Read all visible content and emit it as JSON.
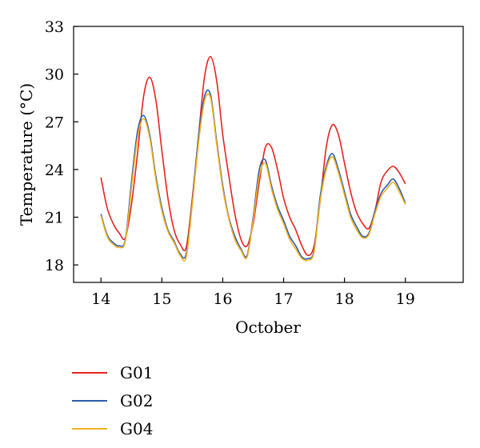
{
  "chart_data": {
    "type": "line",
    "title": "",
    "xlabel": "October",
    "ylabel": "Temperature (°C)",
    "xlim": [
      13.55,
      19.95
    ],
    "ylim": [
      16.9,
      33
    ],
    "xticks": [
      14,
      15,
      16,
      17,
      18,
      19
    ],
    "yticks": [
      18,
      21,
      24,
      27,
      30,
      33
    ],
    "grid": false,
    "legend": "bottom-left",
    "series": [
      {
        "name": "G01",
        "color": "#e8231e",
        "x": [
          14.0,
          14.1,
          14.2,
          14.3,
          14.4,
          14.5,
          14.6,
          14.7,
          14.8,
          14.9,
          15.0,
          15.1,
          15.2,
          15.3,
          15.4,
          15.5,
          15.6,
          15.7,
          15.8,
          15.9,
          16.0,
          16.1,
          16.2,
          16.3,
          16.4,
          16.5,
          16.6,
          16.7,
          16.8,
          16.9,
          17.0,
          17.1,
          17.2,
          17.3,
          17.4,
          17.5,
          17.6,
          17.7,
          17.8,
          17.9,
          18.0,
          18.1,
          18.2,
          18.3,
          18.4,
          18.5,
          18.6,
          18.7,
          18.8,
          18.9,
          19.0
        ],
        "y": [
          23.5,
          21.6,
          20.6,
          20.0,
          19.7,
          21.8,
          25.0,
          28.6,
          29.8,
          28.4,
          25.2,
          22.2,
          20.2,
          19.3,
          19.1,
          22.2,
          26.0,
          29.8,
          31.1,
          29.6,
          26.2,
          23.6,
          21.2,
          19.6,
          19.2,
          20.6,
          23.2,
          25.4,
          25.4,
          24.0,
          22.2,
          21.0,
          20.2,
          19.2,
          18.6,
          19.2,
          22.0,
          25.4,
          26.8,
          26.2,
          24.4,
          22.6,
          21.3,
          20.6,
          20.3,
          21.4,
          23.2,
          23.9,
          24.2,
          23.8,
          23.1
        ]
      },
      {
        "name": "G02",
        "color": "#2c5fa8",
        "x": [
          14.0,
          14.1,
          14.2,
          14.3,
          14.4,
          14.5,
          14.6,
          14.7,
          14.8,
          14.9,
          15.0,
          15.1,
          15.2,
          15.3,
          15.4,
          15.5,
          15.6,
          15.7,
          15.8,
          15.9,
          16.0,
          16.1,
          16.2,
          16.3,
          16.4,
          16.5,
          16.6,
          16.7,
          16.8,
          16.9,
          17.0,
          17.1,
          17.2,
          17.3,
          17.4,
          17.5,
          17.6,
          17.7,
          17.8,
          17.9,
          18.0,
          18.1,
          18.2,
          18.3,
          18.4,
          18.5,
          18.6,
          18.7,
          18.8,
          18.9,
          19.0
        ],
        "y": [
          21.2,
          19.9,
          19.4,
          19.2,
          19.6,
          23.2,
          26.4,
          27.4,
          26.2,
          23.6,
          21.6,
          20.2,
          19.5,
          18.7,
          18.7,
          22.0,
          26.0,
          28.6,
          28.7,
          25.8,
          23.0,
          21.0,
          19.8,
          19.0,
          18.6,
          21.0,
          24.0,
          24.6,
          23.0,
          21.7,
          20.8,
          19.8,
          19.2,
          18.5,
          18.4,
          18.9,
          22.3,
          24.2,
          25.0,
          24.0,
          22.6,
          21.2,
          20.4,
          19.8,
          20.0,
          21.4,
          22.5,
          23.0,
          23.4,
          22.8,
          21.9
        ]
      },
      {
        "name": "G04",
        "color": "#f5b21e",
        "x": [
          14.0,
          14.1,
          14.2,
          14.3,
          14.4,
          14.5,
          14.6,
          14.7,
          14.8,
          14.9,
          15.0,
          15.1,
          15.2,
          15.3,
          15.4,
          15.5,
          15.6,
          15.7,
          15.8,
          15.9,
          16.0,
          16.1,
          16.2,
          16.3,
          16.4,
          16.5,
          16.6,
          16.7,
          16.8,
          16.9,
          17.0,
          17.1,
          17.2,
          17.3,
          17.4,
          17.5,
          17.6,
          17.7,
          17.8,
          17.9,
          18.0,
          18.1,
          18.2,
          18.3,
          18.4,
          18.5,
          18.6,
          18.7,
          18.8,
          18.9,
          19.0
        ],
        "y": [
          21.1,
          19.8,
          19.3,
          19.1,
          19.5,
          22.8,
          26.0,
          27.2,
          26.0,
          23.4,
          21.4,
          20.1,
          19.4,
          18.6,
          18.5,
          21.8,
          25.6,
          28.3,
          28.5,
          25.6,
          22.8,
          20.9,
          19.6,
          18.9,
          18.5,
          20.8,
          23.6,
          24.4,
          22.8,
          21.5,
          20.6,
          19.6,
          19.0,
          18.4,
          18.3,
          18.8,
          22.0,
          24.0,
          24.8,
          23.8,
          22.4,
          21.0,
          20.2,
          19.7,
          19.9,
          21.2,
          22.3,
          22.8,
          23.2,
          22.6,
          21.8
        ]
      }
    ]
  }
}
